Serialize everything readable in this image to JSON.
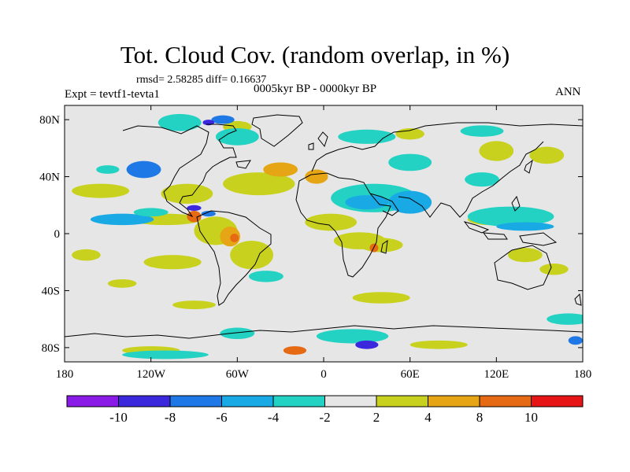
{
  "title": "Tot. Cloud Cov. (random overlap, in %)",
  "stats": "rmsd= 2.58285 diff= 0.16637",
  "period": "0005kyr BP - 0000kyr BP",
  "experiment": "Expt = tevtf1-tevta1",
  "season": "ANN",
  "chart_data": {
    "type": "heatmap",
    "variable": "Tot. Cloud Cov. (random overlap, in %)",
    "units": "%",
    "x_range": [
      -180,
      180
    ],
    "y_range": [
      -90,
      90
    ],
    "x_ticks": [
      "180",
      "120W",
      "60W",
      "0",
      "60E",
      "120E",
      "180"
    ],
    "y_ticks": [
      "80N",
      "40N",
      "0",
      "40S",
      "80S"
    ],
    "colorbar": {
      "labels": [
        "-10",
        "-8",
        "-6",
        "-4",
        "-2",
        "2",
        "4",
        "8",
        "10"
      ],
      "colors": [
        "#8a1ae6",
        "#3c28dc",
        "#1e78e6",
        "#19aae6",
        "#23d2c3",
        "#e6e6e6",
        "#c8d21e",
        "#e6a514",
        "#e66914",
        "#e61414"
      ]
    },
    "regions": [
      {
        "lon": -125,
        "lat": 45,
        "rx": 12,
        "ry": 6,
        "level": 2
      },
      {
        "lon": -155,
        "lat": 30,
        "rx": 20,
        "ry": 5,
        "level": 6
      },
      {
        "lon": -95,
        "lat": 28,
        "rx": 18,
        "ry": 7,
        "level": 6
      },
      {
        "lon": -45,
        "lat": 35,
        "rx": 25,
        "ry": 8,
        "level": 6
      },
      {
        "lon": -30,
        "lat": 45,
        "rx": 12,
        "ry": 5,
        "level": 7
      },
      {
        "lon": -5,
        "lat": 40,
        "rx": 8,
        "ry": 5,
        "level": 7
      },
      {
        "lon": -110,
        "lat": 10,
        "rx": 25,
        "ry": 4,
        "level": 6
      },
      {
        "lon": -75,
        "lat": 2,
        "rx": 15,
        "ry": 10,
        "level": 6
      },
      {
        "lon": -65,
        "lat": -2,
        "rx": 7,
        "ry": 7,
        "level": 7
      },
      {
        "lon": -62,
        "lat": -3,
        "rx": 3,
        "ry": 3,
        "level": 8
      },
      {
        "lon": -90,
        "lat": 12,
        "rx": 5,
        "ry": 4,
        "level": 8
      },
      {
        "lon": -50,
        "lat": -15,
        "rx": 15,
        "ry": 10,
        "level": 6
      },
      {
        "lon": -105,
        "lat": -20,
        "rx": 20,
        "ry": 5,
        "level": 6
      },
      {
        "lon": -165,
        "lat": -15,
        "rx": 10,
        "ry": 4,
        "level": 6
      },
      {
        "lon": -140,
        "lat": -35,
        "rx": 10,
        "ry": 3,
        "level": 6
      },
      {
        "lon": 5,
        "lat": 8,
        "rx": 18,
        "ry": 6,
        "level": 6
      },
      {
        "lon": 25,
        "lat": -5,
        "rx": 18,
        "ry": 6,
        "level": 6
      },
      {
        "lon": 40,
        "lat": -8,
        "rx": 15,
        "ry": 5,
        "level": 6
      },
      {
        "lon": 35,
        "lat": -10,
        "rx": 3,
        "ry": 3,
        "level": 8
      },
      {
        "lon": 120,
        "lat": 58,
        "rx": 12,
        "ry": 7,
        "level": 6
      },
      {
        "lon": 155,
        "lat": 55,
        "rx": 12,
        "ry": 6,
        "level": 6
      },
      {
        "lon": 115,
        "lat": 10,
        "rx": 15,
        "ry": 4,
        "level": 6
      },
      {
        "lon": 140,
        "lat": -15,
        "rx": 12,
        "ry": 5,
        "level": 6
      },
      {
        "lon": 160,
        "lat": -25,
        "rx": 10,
        "ry": 4,
        "level": 6
      },
      {
        "lon": 40,
        "lat": -45,
        "rx": 20,
        "ry": 4,
        "level": 6
      },
      {
        "lon": -90,
        "lat": -50,
        "rx": 15,
        "ry": 3,
        "level": 6
      },
      {
        "lon": 80,
        "lat": -78,
        "rx": 20,
        "ry": 3,
        "level": 6
      },
      {
        "lon": -120,
        "lat": -82,
        "rx": 20,
        "ry": 3,
        "level": 6
      },
      {
        "lon": -60,
        "lat": 75,
        "rx": 10,
        "ry": 4,
        "level": 6
      },
      {
        "lon": 60,
        "lat": 70,
        "rx": 10,
        "ry": 4,
        "level": 6
      },
      {
        "lon": -140,
        "lat": 10,
        "rx": 22,
        "ry": 4,
        "level": 3
      },
      {
        "lon": -120,
        "lat": 15,
        "rx": 12,
        "ry": 3,
        "level": 4
      },
      {
        "lon": -90,
        "lat": 18,
        "rx": 5,
        "ry": 2,
        "level": 1
      },
      {
        "lon": -80,
        "lat": 14,
        "rx": 5,
        "ry": 2,
        "level": 2
      },
      {
        "lon": 35,
        "lat": 25,
        "rx": 30,
        "ry": 10,
        "level": 4
      },
      {
        "lon": 30,
        "lat": 22,
        "rx": 15,
        "ry": 5,
        "level": 3
      },
      {
        "lon": 60,
        "lat": 22,
        "rx": 15,
        "ry": 8,
        "level": 3
      },
      {
        "lon": 130,
        "lat": 12,
        "rx": 30,
        "ry": 7,
        "level": 4
      },
      {
        "lon": 140,
        "lat": 5,
        "rx": 20,
        "ry": 3,
        "level": 3
      },
      {
        "lon": -60,
        "lat": 68,
        "rx": 15,
        "ry": 6,
        "level": 4
      },
      {
        "lon": -100,
        "lat": 78,
        "rx": 15,
        "ry": 6,
        "level": 4
      },
      {
        "lon": -70,
        "lat": 80,
        "rx": 8,
        "ry": 3,
        "level": 2
      },
      {
        "lon": -80,
        "lat": 78,
        "rx": 4,
        "ry": 2,
        "level": 1
      },
      {
        "lon": 30,
        "lat": 68,
        "rx": 20,
        "ry": 5,
        "level": 4
      },
      {
        "lon": 110,
        "lat": 72,
        "rx": 15,
        "ry": 4,
        "level": 4
      },
      {
        "lon": 110,
        "lat": 38,
        "rx": 12,
        "ry": 5,
        "level": 4
      },
      {
        "lon": 60,
        "lat": 50,
        "rx": 15,
        "ry": 6,
        "level": 4
      },
      {
        "lon": -40,
        "lat": -30,
        "rx": 12,
        "ry": 4,
        "level": 4
      },
      {
        "lon": -60,
        "lat": -70,
        "rx": 12,
        "ry": 4,
        "level": 4
      },
      {
        "lon": 20,
        "lat": -72,
        "rx": 25,
        "ry": 5,
        "level": 4
      },
      {
        "lon": 30,
        "lat": -78,
        "rx": 8,
        "ry": 3,
        "level": 1
      },
      {
        "lon": -110,
        "lat": -85,
        "rx": 30,
        "ry": 3,
        "level": 4
      },
      {
        "lon": 175,
        "lat": -75,
        "rx": 5,
        "ry": 3,
        "level": 2
      },
      {
        "lon": 170,
        "lat": -60,
        "rx": 15,
        "ry": 4,
        "level": 4
      },
      {
        "lon": -20,
        "lat": -82,
        "rx": 8,
        "ry": 3,
        "level": 8
      },
      {
        "lon": -150,
        "lat": 45,
        "rx": 8,
        "ry": 3,
        "level": 4
      }
    ]
  }
}
